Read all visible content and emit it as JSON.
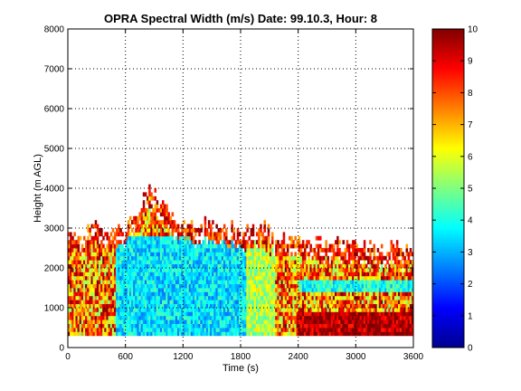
{
  "chart_data": {
    "type": "heatmap",
    "title": "OPRA Spectral Width (m/s)  Date: 99.10.3, Hour: 8",
    "xlabel": "Time (s)",
    "ylabel": "Height (m AGL)",
    "xlim": [
      0,
      3600
    ],
    "ylim": [
      0,
      8000
    ],
    "xticks": [
      0,
      600,
      1200,
      1800,
      2400,
      3000,
      3600
    ],
    "yticks": [
      0,
      1000,
      2000,
      3000,
      4000,
      5000,
      6000,
      7000,
      8000
    ],
    "grid": true,
    "colorbar": {
      "min": 0,
      "max": 10,
      "ticks": [
        0,
        1,
        2,
        3,
        4,
        5,
        6,
        7,
        8,
        9,
        10
      ],
      "colormap": "jet"
    },
    "data_extent": {
      "x_range": [
        0,
        3600
      ],
      "y_range": [
        300,
        4050
      ],
      "top_profile": [
        [
          0,
          2800
        ],
        [
          120,
          2700
        ],
        [
          240,
          3050
        ],
        [
          360,
          2900
        ],
        [
          480,
          3000
        ],
        [
          600,
          3100
        ],
        [
          720,
          3400
        ],
        [
          780,
          3700
        ],
        [
          840,
          4050
        ],
        [
          900,
          3800
        ],
        [
          960,
          3600
        ],
        [
          1080,
          3300
        ],
        [
          1200,
          3100
        ],
        [
          1320,
          3000
        ],
        [
          1440,
          3100
        ],
        [
          1560,
          2950
        ],
        [
          1680,
          3000
        ],
        [
          1800,
          2900
        ],
        [
          1920,
          3050
        ],
        [
          2040,
          3000
        ],
        [
          2160,
          2750
        ],
        [
          2400,
          2700
        ],
        [
          2640,
          2600
        ],
        [
          3000,
          2550
        ],
        [
          3600,
          2450
        ]
      ],
      "core": [
        {
          "x_range": [
            500,
            1850
          ],
          "y_range": [
            300,
            2700
          ],
          "value": 3.5
        },
        {
          "x_range": [
            1850,
            2150
          ],
          "y_range": [
            300,
            2400
          ],
          "value": 5.5
        },
        {
          "x_range": [
            2400,
            3600
          ],
          "y_range": [
            300,
            800
          ],
          "value": 9.5
        },
        {
          "x_range": [
            2400,
            3600
          ],
          "y_range": [
            1400,
            1600
          ],
          "value": 4.0
        }
      ]
    }
  }
}
